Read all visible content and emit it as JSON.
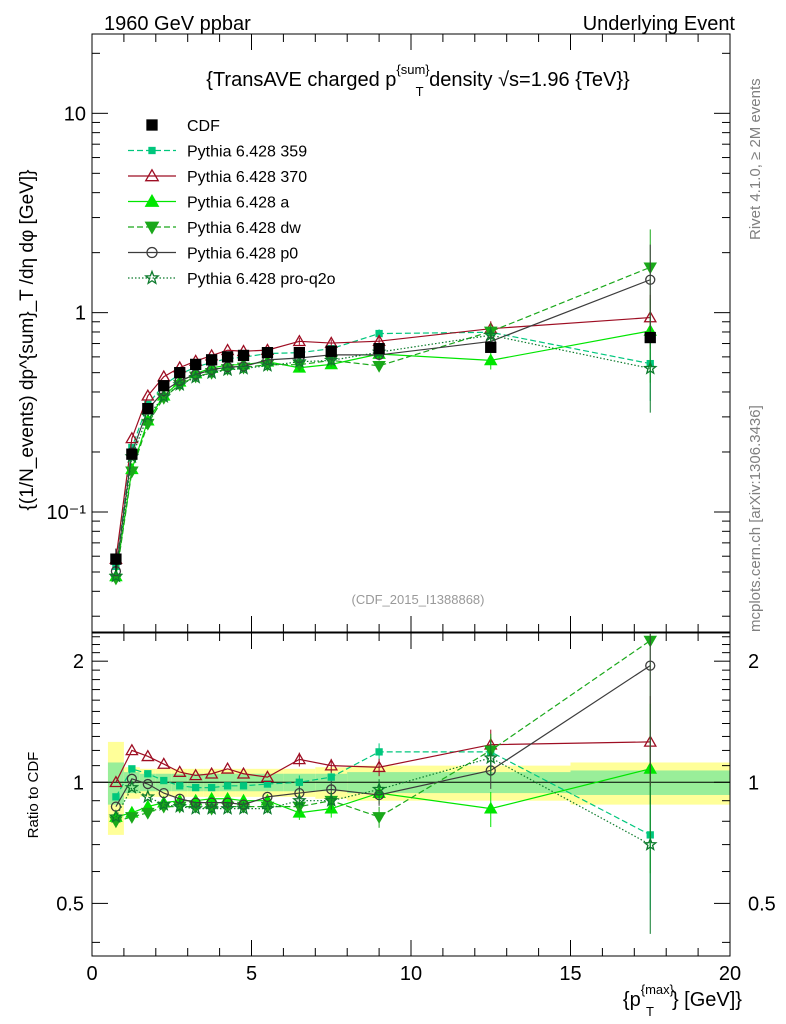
{
  "header": {
    "left": "1960 GeV ppbar",
    "right": "Underlying Event"
  },
  "side": {
    "rivet": "Rivet 4.1.0, ≥ 2M events",
    "mcplots": "mcplots.cern.ch [arXiv:1306.3436]"
  },
  "chart_data": {
    "type": "line",
    "title_text": "{TransAVE charged p",
    "title_sup": "{sum}",
    "title_sub": "T",
    "title_tail": " density √s=1.96 {TeV}}",
    "analysis_id": "(CDF_2015_I1388868)",
    "ylabel_main": "{(1/N_events) dp^{sum}_T /dη dφ [GeV]}",
    "ylabel_ratio": "Ratio to CDF",
    "xlabel_text": "{p",
    "xlabel_sup": "{max}",
    "xlabel_sub": "T",
    "xlabel_tail": "} [GeV]}",
    "xlim": [
      0,
      20
    ],
    "ylim_main": [
      0.025,
      25
    ],
    "ylim_ratio": [
      0.37,
      2.35
    ],
    "yscale_main": "log",
    "yscale_ratio": "log",
    "xticks": [
      "0",
      "5",
      "10",
      "15",
      "20"
    ],
    "yticks_main": [
      "10⁻¹",
      "1",
      "10"
    ],
    "yticks_ratio": [
      "0.5",
      "1",
      "2"
    ],
    "legend_position": "top-left",
    "x": [
      0.75,
      1.25,
      1.75,
      2.25,
      2.75,
      3.25,
      3.75,
      4.25,
      4.75,
      5.5,
      6.5,
      7.5,
      9.0,
      12.5,
      17.5
    ],
    "reference": {
      "name": "CDF",
      "values": [
        0.058,
        0.195,
        0.33,
        0.43,
        0.5,
        0.55,
        0.58,
        0.6,
        0.61,
        0.63,
        0.63,
        0.64,
        0.66,
        0.67,
        0.75
      ],
      "band_inner": [
        0.12,
        0.06,
        0.05,
        0.05,
        0.05,
        0.05,
        0.05,
        0.05,
        0.05,
        0.05,
        0.05,
        0.05,
        0.06,
        0.06,
        0.07
      ],
      "band_outer": [
        0.26,
        0.09,
        0.08,
        0.08,
        0.08,
        0.08,
        0.08,
        0.08,
        0.08,
        0.08,
        0.08,
        0.09,
        0.1,
        0.1,
        0.12
      ]
    },
    "series": [
      {
        "name": "Pythia 6.428 359",
        "color": "#00c77d",
        "dash": "6,3",
        "marker": "square",
        "filled": true,
        "ratio": [
          0.92,
          1.08,
          1.05,
          1.01,
          0.98,
          0.97,
          0.97,
          0.98,
          0.98,
          0.99,
          1.0,
          1.03,
          1.19,
          1.19,
          0.74
        ],
        "err": [
          0.02,
          0.02,
          0.02,
          0.02,
          0.02,
          0.02,
          0.02,
          0.02,
          0.02,
          0.02,
          0.04,
          0.04,
          0.05,
          0.09,
          0.35
        ]
      },
      {
        "name": "Pythia 6.428 370",
        "color": "#9e0e23",
        "dash": "",
        "marker": "triangle-up",
        "filled": false,
        "ratio": [
          1.0,
          1.2,
          1.16,
          1.11,
          1.06,
          1.04,
          1.05,
          1.08,
          1.05,
          1.03,
          1.14,
          1.1,
          1.09,
          1.24,
          1.26
        ],
        "err": [
          0.02,
          0.02,
          0.02,
          0.02,
          0.02,
          0.02,
          0.02,
          0.02,
          0.02,
          0.02,
          0.04,
          0.04,
          0.05,
          0.09,
          0.3
        ]
      },
      {
        "name": "Pythia 6.428 a",
        "color": "#00e600",
        "dash": "",
        "marker": "triangle-up",
        "filled": true,
        "ratio": [
          0.82,
          0.84,
          0.87,
          0.89,
          0.9,
          0.9,
          0.91,
          0.91,
          0.9,
          0.9,
          0.84,
          0.86,
          0.94,
          0.86,
          1.08
        ],
        "err": [
          0.02,
          0.02,
          0.02,
          0.02,
          0.02,
          0.02,
          0.02,
          0.02,
          0.02,
          0.02,
          0.04,
          0.05,
          0.06,
          0.1,
          0.45
        ]
      },
      {
        "name": "Pythia 6.428 dw",
        "color": "#1aa81a",
        "dash": "6,3",
        "marker": "triangle-down",
        "filled": true,
        "ratio": [
          0.8,
          0.82,
          0.84,
          0.87,
          0.87,
          0.87,
          0.86,
          0.87,
          0.87,
          0.87,
          0.87,
          0.9,
          0.82,
          1.2,
          2.25
        ],
        "err": [
          0.02,
          0.02,
          0.02,
          0.02,
          0.02,
          0.02,
          0.02,
          0.02,
          0.02,
          0.02,
          0.04,
          0.05,
          0.06,
          0.1,
          0.55
        ]
      },
      {
        "name": "Pythia 6.428 p0",
        "color": "#3c3c3c",
        "dash": "",
        "marker": "circle",
        "filled": false,
        "ratio": [
          0.87,
          1.02,
          0.99,
          0.94,
          0.91,
          0.89,
          0.89,
          0.89,
          0.88,
          0.92,
          0.94,
          0.96,
          0.93,
          1.07,
          1.95
        ],
        "err": [
          0.02,
          0.02,
          0.02,
          0.02,
          0.02,
          0.02,
          0.02,
          0.02,
          0.02,
          0.02,
          0.04,
          0.05,
          0.06,
          0.1,
          0.5
        ]
      },
      {
        "name": "Pythia 6.428 pro-q2o",
        "color": "#0c7a2c",
        "dash": "1.5,2",
        "marker": "star",
        "filled": false,
        "ratio": [
          0.82,
          0.97,
          0.92,
          0.88,
          0.87,
          0.86,
          0.86,
          0.86,
          0.86,
          0.86,
          0.9,
          0.9,
          0.96,
          1.15,
          0.7
        ],
        "err": [
          0.02,
          0.02,
          0.02,
          0.02,
          0.02,
          0.02,
          0.02,
          0.02,
          0.02,
          0.02,
          0.04,
          0.05,
          0.06,
          0.1,
          0.4
        ]
      }
    ]
  }
}
